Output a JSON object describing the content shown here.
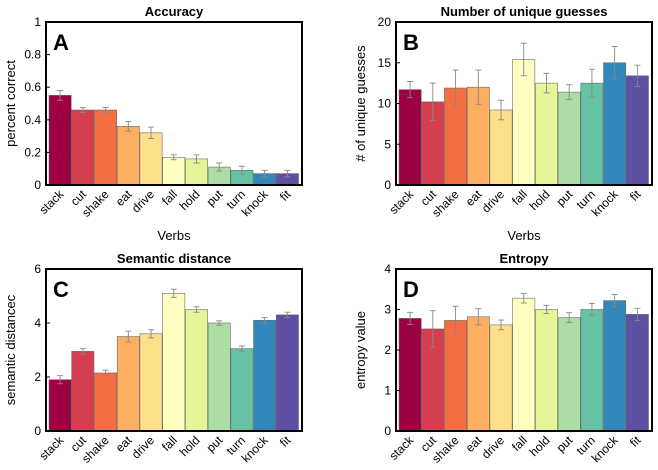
{
  "chart_data": [
    {
      "type": "bar",
      "panel_letter": "A",
      "title": "Accuracy",
      "xlabel": "Verbs",
      "ylabel": "percent correct",
      "ylim": [
        0,
        1
      ],
      "yticks": [
        "0",
        "0.2",
        "0.4",
        "0.6",
        "0.8",
        "1"
      ],
      "categories": [
        "stack",
        "cut",
        "shake",
        "eat",
        "drive",
        "fall",
        "hold",
        "put",
        "turn",
        "knock",
        "fit"
      ],
      "values": [
        0.55,
        0.46,
        0.46,
        0.36,
        0.32,
        0.17,
        0.16,
        0.11,
        0.09,
        0.07,
        0.07
      ],
      "errors": [
        0.03,
        0.015,
        0.015,
        0.03,
        0.035,
        0.015,
        0.025,
        0.025,
        0.025,
        0.02,
        0.02
      ]
    },
    {
      "type": "bar",
      "panel_letter": "B",
      "title": "Number of unique guesses",
      "xlabel": "Verbs",
      "ylabel": "# of unique guesses",
      "ylim": [
        0,
        20
      ],
      "yticks": [
        "0",
        "5",
        "10",
        "15",
        "20"
      ],
      "categories": [
        "stack",
        "cut",
        "shake",
        "eat",
        "drive",
        "fall",
        "hold",
        "put",
        "turn",
        "knock",
        "fit"
      ],
      "values": [
        11.7,
        10.2,
        11.9,
        12.0,
        9.2,
        15.4,
        12.5,
        11.4,
        12.5,
        15.0,
        13.4
      ],
      "errors": [
        1.0,
        2.3,
        2.2,
        2.1,
        1.2,
        2.0,
        1.2,
        0.9,
        1.7,
        2.0,
        1.3
      ]
    },
    {
      "type": "bar",
      "panel_letter": "C",
      "title": "Semantic distance",
      "xlabel": "",
      "ylabel": "semantic distancec",
      "ylim": [
        0,
        6
      ],
      "yticks": [
        "0",
        "2",
        "4",
        "6"
      ],
      "categories": [
        "stack",
        "cut",
        "shake",
        "eat",
        "drive",
        "fall",
        "hold",
        "put",
        "turn",
        "knock",
        "fit"
      ],
      "values": [
        1.9,
        2.95,
        2.15,
        3.5,
        3.6,
        5.1,
        4.5,
        4.0,
        3.05,
        4.1,
        4.3
      ],
      "errors": [
        0.15,
        0.1,
        0.1,
        0.2,
        0.15,
        0.15,
        0.1,
        0.08,
        0.1,
        0.1,
        0.1
      ]
    },
    {
      "type": "bar",
      "panel_letter": "D",
      "title": "Entropy",
      "xlabel": "",
      "ylabel": "entropy value",
      "ylim": [
        0,
        4
      ],
      "yticks": [
        "0",
        "1",
        "2",
        "3",
        "4"
      ],
      "categories": [
        "stack",
        "cut",
        "shake",
        "eat",
        "drive",
        "fall",
        "hold",
        "put",
        "turn",
        "knock",
        "fit"
      ],
      "values": [
        2.78,
        2.52,
        2.73,
        2.82,
        2.62,
        3.28,
        3.0,
        2.8,
        3.0,
        3.22,
        2.88
      ],
      "errors": [
        0.15,
        0.45,
        0.35,
        0.2,
        0.12,
        0.12,
        0.1,
        0.12,
        0.15,
        0.15,
        0.15
      ]
    }
  ],
  "colors": [
    "#9e0142",
    "#d53e4f",
    "#f46d43",
    "#fdae61",
    "#fee08b",
    "#ffffbf",
    "#e6f598",
    "#abdda4",
    "#66c2a5",
    "#3288bd",
    "#5e4fa2"
  ],
  "error_bar_color": "#888888"
}
